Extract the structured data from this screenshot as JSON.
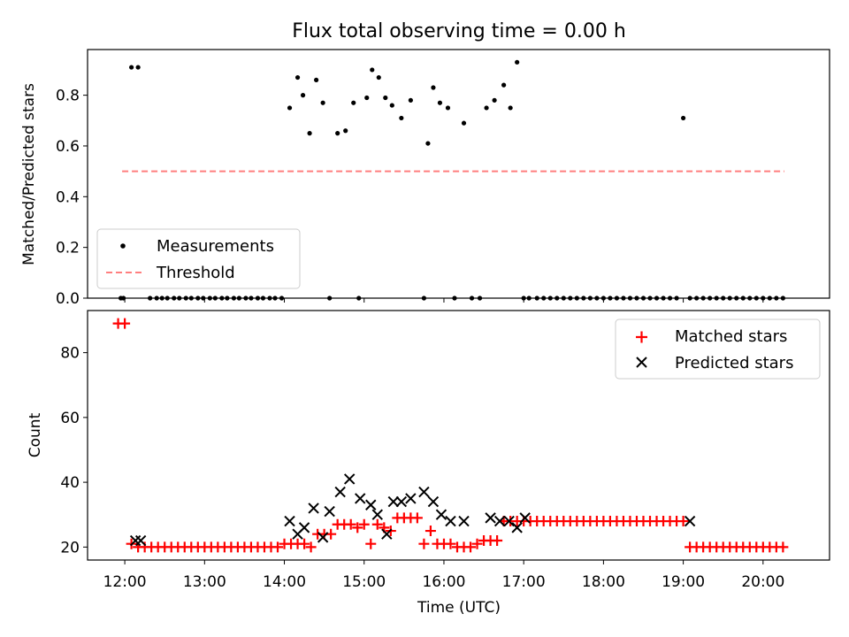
{
  "chart_data": [
    {
      "type": "scatter",
      "title": "Flux total observing time = 0.00 h",
      "xlabel": "",
      "ylabel": "Matched/Predicted stars",
      "xlim": [
        "11:32",
        "20:50"
      ],
      "ylim": [
        0,
        0.98
      ],
      "yticks": [
        "0.0",
        "0.2",
        "0.4",
        "0.6",
        "0.8"
      ],
      "legend": {
        "position": "lower-left",
        "entries": [
          {
            "label": "Measurements",
            "marker": "dot",
            "color": "#000000"
          },
          {
            "label": "Threshold",
            "marker": "dashed-line",
            "color": "#ff7f7f"
          }
        ]
      },
      "threshold": {
        "value": 0.5,
        "x_start": "11:58",
        "x_end": "20:16"
      },
      "series": [
        {
          "name": "Measurements",
          "x": [
            "11:57",
            "11:59",
            "12:05",
            "12:10",
            "12:19",
            "12:24",
            "12:28",
            "12:32",
            "12:37",
            "12:41",
            "12:46",
            "12:50",
            "12:55",
            "12:59",
            "13:04",
            "13:08",
            "13:13",
            "13:17",
            "13:22",
            "13:26",
            "13:31",
            "13:35",
            "13:40",
            "13:44",
            "13:49",
            "13:53",
            "13:58",
            "14:04",
            "14:10",
            "14:14",
            "14:19",
            "14:24",
            "14:29",
            "14:34",
            "14:40",
            "14:46",
            "14:52",
            "14:56",
            "15:02",
            "15:06",
            "15:11",
            "15:16",
            "15:21",
            "15:28",
            "15:35",
            "15:45",
            "15:48",
            "15:52",
            "15:57",
            "16:03",
            "16:08",
            "16:15",
            "16:21",
            "16:27",
            "16:32",
            "16:38",
            "16:45",
            "16:50",
            "16:55",
            "17:00",
            "17:04",
            "17:10",
            "17:15",
            "17:20",
            "17:25",
            "17:30",
            "17:35",
            "17:40",
            "17:45",
            "17:50",
            "17:55",
            "18:00",
            "18:05",
            "18:10",
            "18:15",
            "18:20",
            "18:25",
            "18:30",
            "18:35",
            "18:40",
            "18:45",
            "18:50",
            "18:55",
            "19:00",
            "19:05",
            "19:10",
            "19:15",
            "19:20",
            "19:25",
            "19:30",
            "19:35",
            "19:40",
            "19:45",
            "19:50",
            "19:55",
            "20:00",
            "20:05",
            "20:10",
            "20:15"
          ],
          "y": [
            0,
            0,
            0.91,
            0.91,
            0,
            0,
            0,
            0,
            0,
            0,
            0,
            0,
            0,
            0,
            0,
            0,
            0,
            0,
            0,
            0,
            0,
            0,
            0,
            0,
            0,
            0,
            0,
            0.75,
            0.87,
            0.8,
            0.65,
            0.86,
            0.77,
            0,
            0.65,
            0.66,
            0.77,
            0,
            0.79,
            0.9,
            0.87,
            0.79,
            0.76,
            0.71,
            0.78,
            0,
            0.61,
            0.83,
            0.77,
            0.75,
            0,
            0.69,
            0,
            0,
            0.75,
            0.78,
            0.84,
            0.75,
            0.93,
            0,
            0,
            0,
            0,
            0,
            0,
            0,
            0,
            0,
            0,
            0,
            0,
            0,
            0,
            0,
            0,
            0,
            0,
            0,
            0,
            0,
            0,
            0,
            0,
            0.71,
            0,
            0,
            0,
            0,
            0,
            0,
            0,
            0,
            0,
            0,
            0,
            0,
            0,
            0,
            0
          ]
        }
      ]
    },
    {
      "type": "scatter",
      "title": "",
      "xlabel": "Time (UTC)",
      "ylabel": "Count",
      "xlim": [
        "11:32",
        "20:50"
      ],
      "ylim": [
        16,
        93
      ],
      "xticks": [
        "12:00",
        "13:00",
        "14:00",
        "15:00",
        "16:00",
        "17:00",
        "18:00",
        "19:00",
        "20:00"
      ],
      "yticks": [
        "20",
        "40",
        "60",
        "80"
      ],
      "legend": {
        "position": "upper-right",
        "entries": [
          {
            "label": "Matched stars",
            "marker": "plus",
            "color": "#ff0000"
          },
          {
            "label": "Predicted stars",
            "marker": "x",
            "color": "#000000"
          }
        ]
      },
      "series": [
        {
          "name": "Matched stars",
          "x": [
            "11:55",
            "12:00",
            "12:05",
            "12:10",
            "12:15",
            "12:20",
            "12:25",
            "12:30",
            "12:35",
            "12:40",
            "12:45",
            "12:50",
            "12:55",
            "13:00",
            "13:05",
            "13:10",
            "13:15",
            "13:20",
            "13:25",
            "13:30",
            "13:35",
            "13:40",
            "13:45",
            "13:50",
            "13:55",
            "14:00",
            "14:05",
            "14:10",
            "14:15",
            "14:20",
            "14:25",
            "14:30",
            "14:35",
            "14:40",
            "14:45",
            "14:50",
            "14:55",
            "15:00",
            "15:05",
            "15:10",
            "15:15",
            "15:20",
            "15:25",
            "15:30",
            "15:35",
            "15:40",
            "15:45",
            "15:50",
            "15:55",
            "16:00",
            "16:05",
            "16:10",
            "16:15",
            "16:20",
            "16:25",
            "16:30",
            "16:35",
            "16:40",
            "16:45",
            "16:50",
            "16:55",
            "17:00",
            "17:05",
            "17:10",
            "17:15",
            "17:20",
            "17:25",
            "17:30",
            "17:35",
            "17:40",
            "17:45",
            "17:50",
            "17:55",
            "18:00",
            "18:05",
            "18:10",
            "18:15",
            "18:20",
            "18:25",
            "18:30",
            "18:35",
            "18:40",
            "18:45",
            "18:50",
            "18:55",
            "19:00",
            "19:05",
            "19:10",
            "19:15",
            "19:20",
            "19:25",
            "19:30",
            "19:35",
            "19:40",
            "19:45",
            "19:50",
            "19:55",
            "20:00",
            "20:05",
            "20:10",
            "20:15"
          ],
          "y": [
            89,
            89,
            21,
            20,
            20,
            20,
            20,
            20,
            20,
            20,
            20,
            20,
            20,
            20,
            20,
            20,
            20,
            20,
            20,
            20,
            20,
            20,
            20,
            20,
            20,
            21,
            21,
            21,
            21,
            20,
            24,
            24,
            24,
            27,
            27,
            27,
            26,
            27,
            21,
            27,
            26,
            25,
            29,
            29,
            29,
            29,
            21,
            25,
            21,
            21,
            21,
            20,
            20,
            20,
            21,
            22,
            22,
            22,
            28,
            28,
            28,
            28,
            28,
            28,
            28,
            28,
            28,
            28,
            28,
            28,
            28,
            28,
            28,
            28,
            28,
            28,
            28,
            28,
            28,
            28,
            28,
            28,
            28,
            28,
            28,
            28,
            20,
            20,
            20,
            20,
            20,
            20,
            20,
            20,
            20,
            20,
            20,
            20,
            20,
            20,
            20
          ]
        },
        {
          "name": "Predicted stars",
          "x": [
            "12:08",
            "12:12",
            "14:04",
            "14:10",
            "14:15",
            "14:22",
            "14:29",
            "14:34",
            "14:42",
            "14:49",
            "14:57",
            "15:05",
            "15:10",
            "15:17",
            "15:22",
            "15:28",
            "15:35",
            "15:45",
            "15:52",
            "15:58",
            "16:05",
            "16:15",
            "16:35",
            "16:42",
            "16:49",
            "16:55",
            "17:01",
            "19:05"
          ],
          "y": [
            22,
            22,
            28,
            24,
            26,
            32,
            23,
            31,
            37,
            41,
            35,
            33,
            30,
            24,
            34,
            34,
            35,
            37,
            34,
            30,
            28,
            28,
            29,
            28,
            28,
            26,
            29,
            28
          ]
        }
      ]
    }
  ]
}
